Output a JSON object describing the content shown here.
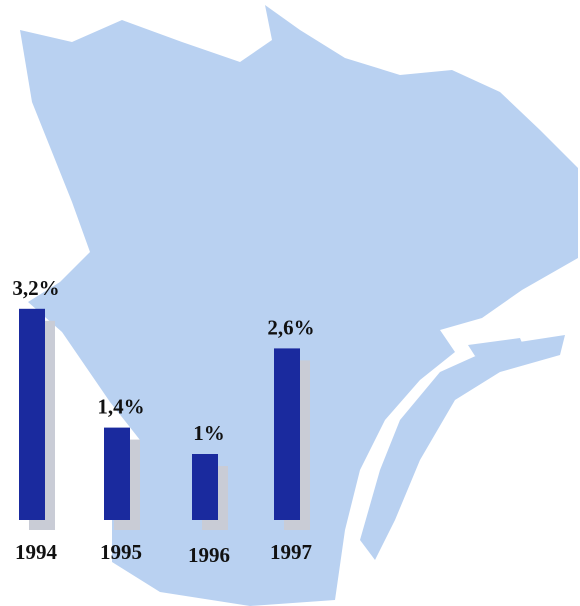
{
  "chart_data": {
    "type": "bar",
    "categories": [
      "1994",
      "1995",
      "1996",
      "1997"
    ],
    "values": [
      3.2,
      1.4,
      1,
      2.6
    ],
    "value_labels": [
      "3,2%",
      "1,4%",
      "1%",
      "2,6%"
    ],
    "color": "#1a2a9e"
  }
}
